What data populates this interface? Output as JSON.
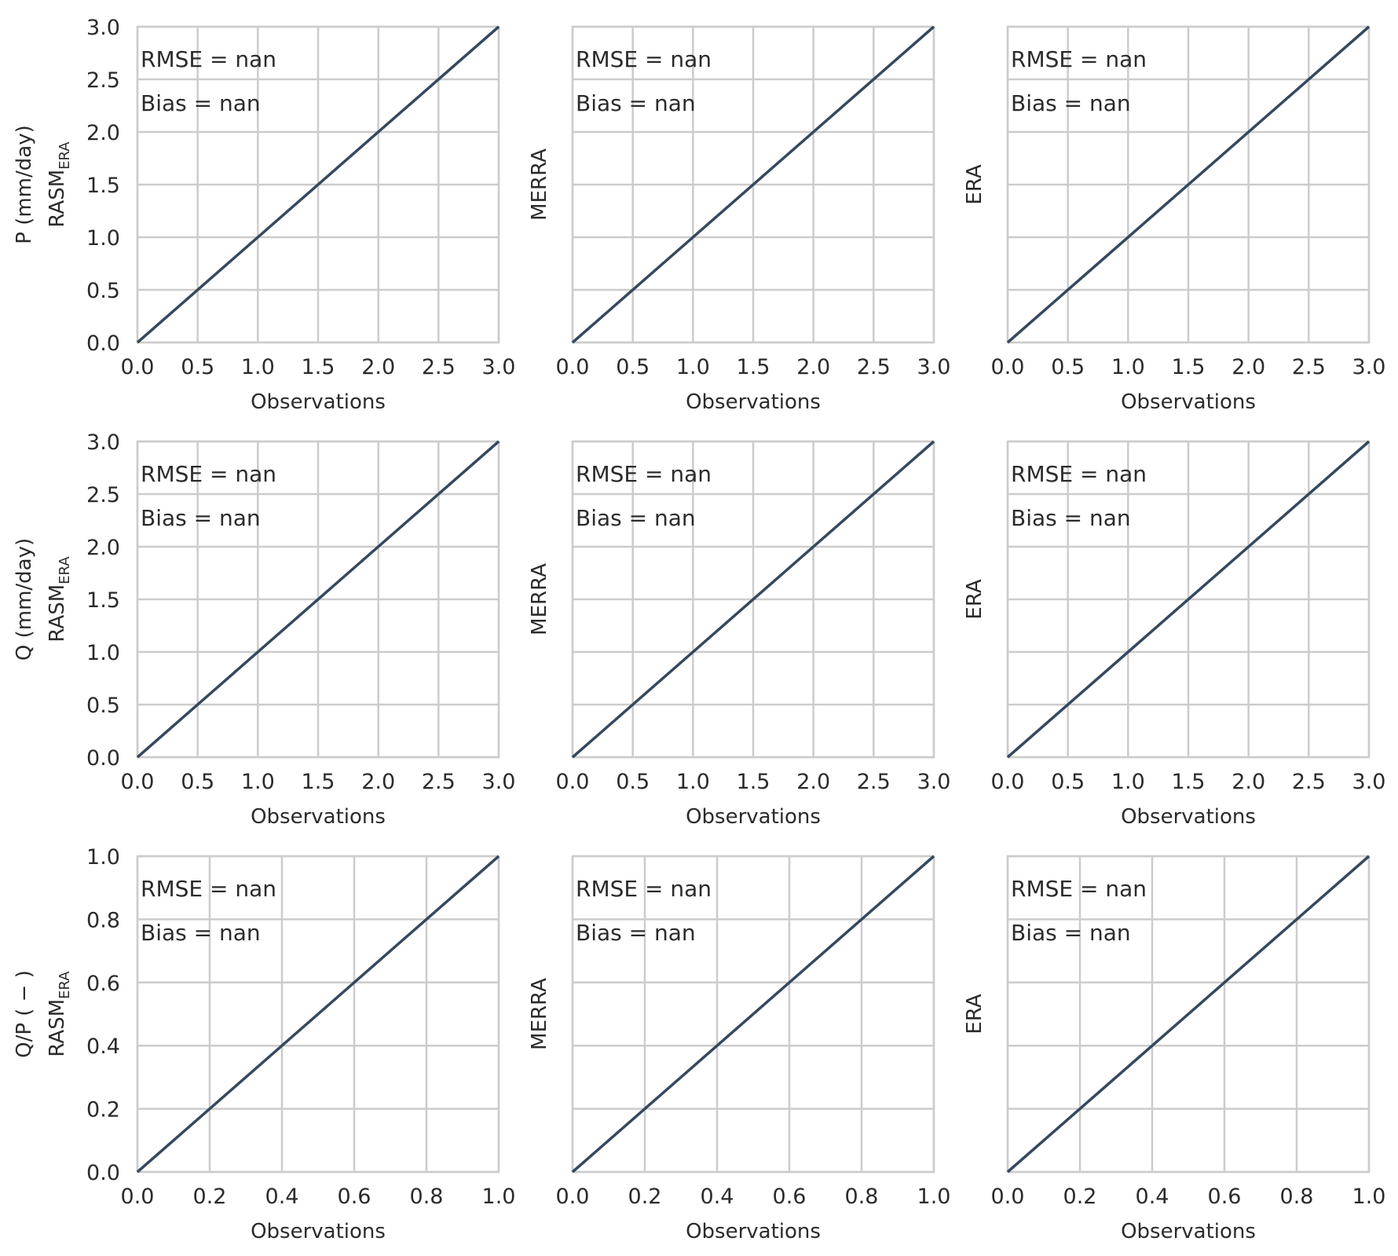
{
  "chart_data": [
    {
      "type": "line",
      "row_label": "P (mm/day)",
      "ylabel": "RASM",
      "ylabel_sub": "ERA",
      "xlabel": "Observations",
      "xlim": [
        0,
        3
      ],
      "ylim": [
        0,
        3
      ],
      "xticks": [
        "0.0",
        "0.5",
        "1.0",
        "1.5",
        "2.0",
        "2.5",
        "3.0"
      ],
      "yticks": [
        "0.0",
        "0.5",
        "1.0",
        "1.5",
        "2.0",
        "2.5",
        "3.0"
      ],
      "series": [
        {
          "x": [
            0,
            3
          ],
          "y": [
            0,
            3
          ]
        }
      ],
      "annotations": [
        "RMSE = nan",
        "Bias = nan"
      ],
      "grid": true
    },
    {
      "type": "line",
      "row_label": "",
      "ylabel": "MERRA",
      "ylabel_sub": "",
      "xlabel": "Observations",
      "xlim": [
        0,
        3
      ],
      "ylim": [
        0,
        3
      ],
      "xticks": [
        "0.0",
        "0.5",
        "1.0",
        "1.5",
        "2.0",
        "2.5",
        "3.0"
      ],
      "yticks": [],
      "series": [
        {
          "x": [
            0,
            3
          ],
          "y": [
            0,
            3
          ]
        }
      ],
      "annotations": [
        "RMSE = nan",
        "Bias = nan"
      ],
      "grid": true
    },
    {
      "type": "line",
      "row_label": "",
      "ylabel": "ERA",
      "ylabel_sub": "",
      "xlabel": "Observations",
      "xlim": [
        0,
        3
      ],
      "ylim": [
        0,
        3
      ],
      "xticks": [
        "0.0",
        "0.5",
        "1.0",
        "1.5",
        "2.0",
        "2.5",
        "3.0"
      ],
      "yticks": [],
      "series": [
        {
          "x": [
            0,
            3
          ],
          "y": [
            0,
            3
          ]
        }
      ],
      "annotations": [
        "RMSE = nan",
        "Bias = nan"
      ],
      "grid": true
    },
    {
      "type": "line",
      "row_label": "Q (mm/day)",
      "ylabel": "RASM",
      "ylabel_sub": "ERA",
      "xlabel": "Observations",
      "xlim": [
        0,
        3
      ],
      "ylim": [
        0,
        3
      ],
      "xticks": [
        "0.0",
        "0.5",
        "1.0",
        "1.5",
        "2.0",
        "2.5",
        "3.0"
      ],
      "yticks": [
        "0.0",
        "0.5",
        "1.0",
        "1.5",
        "2.0",
        "2.5",
        "3.0"
      ],
      "series": [
        {
          "x": [
            0,
            3
          ],
          "y": [
            0,
            3
          ]
        }
      ],
      "annotations": [
        "RMSE = nan",
        "Bias = nan"
      ],
      "grid": true
    },
    {
      "type": "line",
      "row_label": "",
      "ylabel": "MERRA",
      "ylabel_sub": "",
      "xlabel": "Observations",
      "xlim": [
        0,
        3
      ],
      "ylim": [
        0,
        3
      ],
      "xticks": [
        "0.0",
        "0.5",
        "1.0",
        "1.5",
        "2.0",
        "2.5",
        "3.0"
      ],
      "yticks": [],
      "series": [
        {
          "x": [
            0,
            3
          ],
          "y": [
            0,
            3
          ]
        }
      ],
      "annotations": [
        "RMSE = nan",
        "Bias = nan"
      ],
      "grid": true
    },
    {
      "type": "line",
      "row_label": "",
      "ylabel": "ERA",
      "ylabel_sub": "",
      "xlabel": "Observations",
      "xlim": [
        0,
        3
      ],
      "ylim": [
        0,
        3
      ],
      "xticks": [
        "0.0",
        "0.5",
        "1.0",
        "1.5",
        "2.0",
        "2.5",
        "3.0"
      ],
      "yticks": [],
      "series": [
        {
          "x": [
            0,
            3
          ],
          "y": [
            0,
            3
          ]
        }
      ],
      "annotations": [
        "RMSE = nan",
        "Bias = nan"
      ],
      "grid": true
    },
    {
      "type": "line",
      "row_label": "Q/P ( − )",
      "ylabel": "RASM",
      "ylabel_sub": "ERA",
      "xlabel": "Observations",
      "xlim": [
        0,
        1
      ],
      "ylim": [
        0,
        1
      ],
      "xticks": [
        "0.0",
        "0.2",
        "0.4",
        "0.6",
        "0.8",
        "1.0"
      ],
      "yticks": [
        "0.0",
        "0.2",
        "0.4",
        "0.6",
        "0.8",
        "1.0"
      ],
      "series": [
        {
          "x": [
            0,
            1
          ],
          "y": [
            0,
            1
          ]
        }
      ],
      "annotations": [
        "RMSE = nan",
        "Bias = nan"
      ],
      "grid": true
    },
    {
      "type": "line",
      "row_label": "",
      "ylabel": "MERRA",
      "ylabel_sub": "",
      "xlabel": "Observations",
      "xlim": [
        0,
        1
      ],
      "ylim": [
        0,
        1
      ],
      "xticks": [
        "0.0",
        "0.2",
        "0.4",
        "0.6",
        "0.8",
        "1.0"
      ],
      "yticks": [],
      "series": [
        {
          "x": [
            0,
            1
          ],
          "y": [
            0,
            1
          ]
        }
      ],
      "annotations": [
        "RMSE = nan",
        "Bias = nan"
      ],
      "grid": true
    },
    {
      "type": "line",
      "row_label": "",
      "ylabel": "ERA",
      "ylabel_sub": "",
      "xlabel": "Observations",
      "xlim": [
        0,
        1
      ],
      "ylim": [
        0,
        1
      ],
      "xticks": [
        "0.0",
        "0.2",
        "0.4",
        "0.6",
        "0.8",
        "1.0"
      ],
      "yticks": [],
      "series": [
        {
          "x": [
            0,
            1
          ],
          "y": [
            0,
            1
          ]
        }
      ],
      "annotations": [
        "RMSE = nan",
        "Bias = nan"
      ],
      "grid": true
    }
  ],
  "colors": {
    "line": "#34495e",
    "grid": "#cccccc",
    "text": "#2b2b2b"
  }
}
